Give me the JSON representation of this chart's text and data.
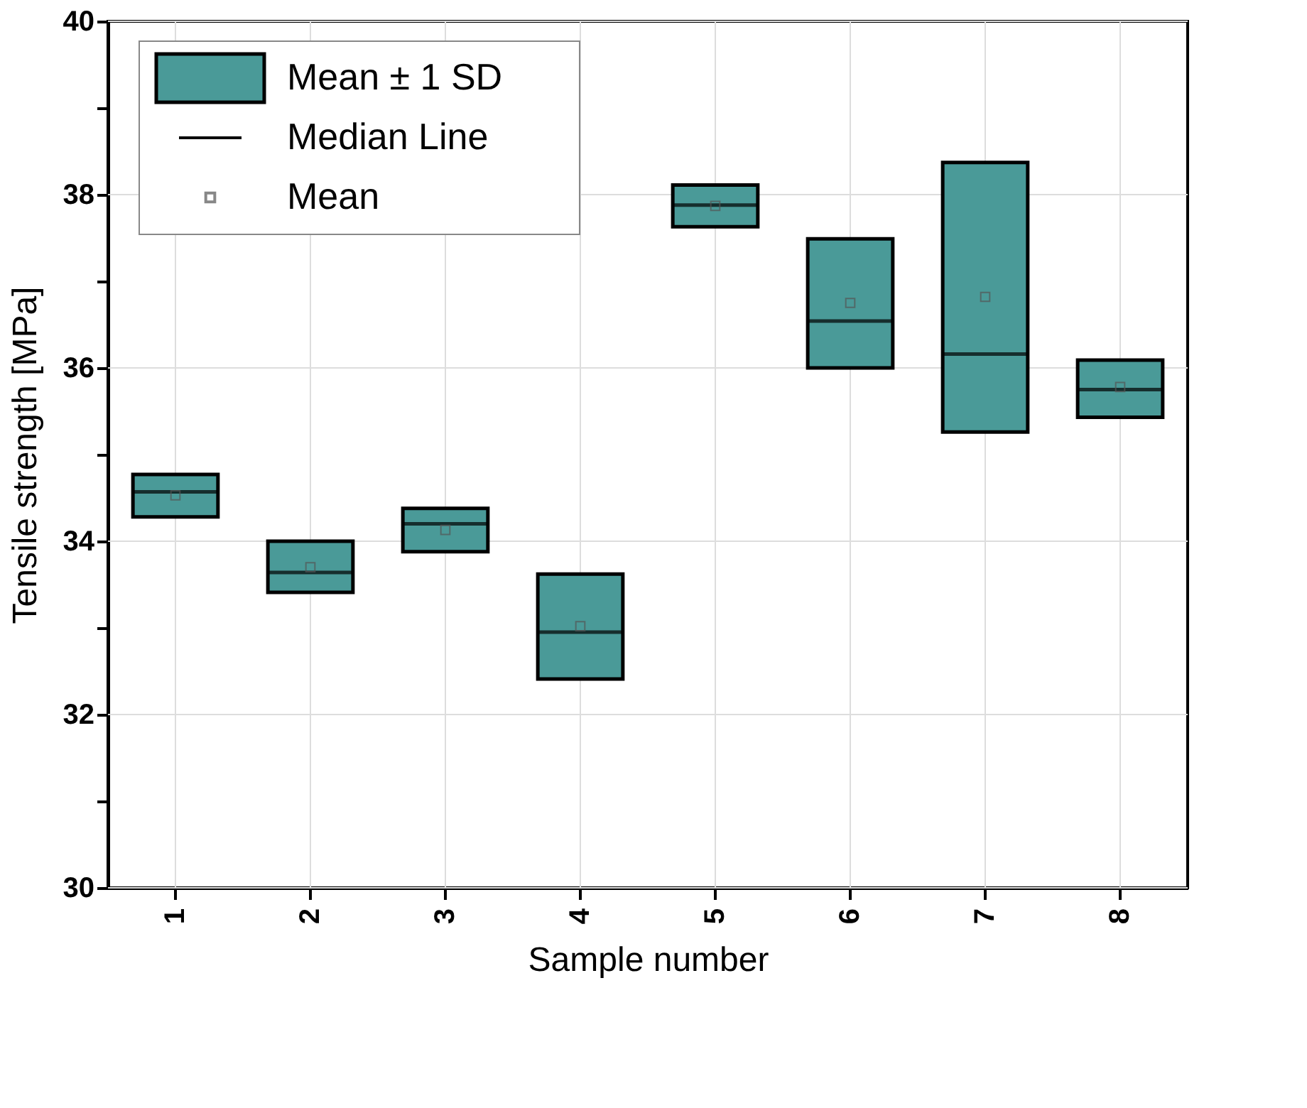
{
  "chart_data": {
    "type": "box",
    "xlabel": "Sample number",
    "ylabel": "Tensile strength [MPa]",
    "categories": [
      "1",
      "2",
      "3",
      "4",
      "5",
      "6",
      "7",
      "8"
    ],
    "ylim": [
      30,
      40
    ],
    "yticks": [
      30,
      {
        "value": 31,
        "label": null
      },
      32,
      {
        "value": 33,
        "label": null
      },
      34,
      {
        "value": 35,
        "label": null
      },
      36,
      {
        "value": 37,
        "label": null
      },
      38,
      {
        "value": 39,
        "label": null
      },
      40
    ],
    "grid": true,
    "legend": "top left",
    "marker": "square",
    "annotations": [
      "Median Line"
    ],
    "series": [
      {
        "name": "Mean ± 1 SD",
        "color": "#4a9a98",
        "boxes": [
          {
            "low": 34.28,
            "q1": 34.28,
            "median": 34.57,
            "q3": 34.77,
            "high": 34.77
          },
          {
            "low": 33.41,
            "q1": 33.41,
            "median": 33.64,
            "q3": 34.0,
            "high": 34.0
          },
          {
            "low": 33.88,
            "q1": 33.88,
            "median": 34.2,
            "q3": 34.38,
            "high": 34.38
          },
          {
            "low": 32.41,
            "q1": 32.41,
            "median": 32.95,
            "q3": 33.62,
            "high": 33.62
          },
          {
            "low": 37.63,
            "q1": 37.63,
            "median": 37.88,
            "q3": 38.11,
            "high": 38.11
          },
          {
            "low": 36.0,
            "q1": 36.0,
            "median": 36.54,
            "q3": 37.49,
            "high": 37.49
          },
          {
            "low": 35.26,
            "q1": 35.26,
            "median": 36.16,
            "q3": 38.37,
            "high": 38.37
          },
          {
            "low": 35.43,
            "q1": 35.43,
            "median": 35.75,
            "q3": 36.09,
            "high": 36.09
          }
        ]
      },
      {
        "name": "Mean",
        "type": "scatter",
        "color": "#555555",
        "values": [
          34.53,
          33.7,
          34.13,
          33.02,
          37.87,
          36.75,
          36.82,
          35.78
        ]
      }
    ]
  }
}
